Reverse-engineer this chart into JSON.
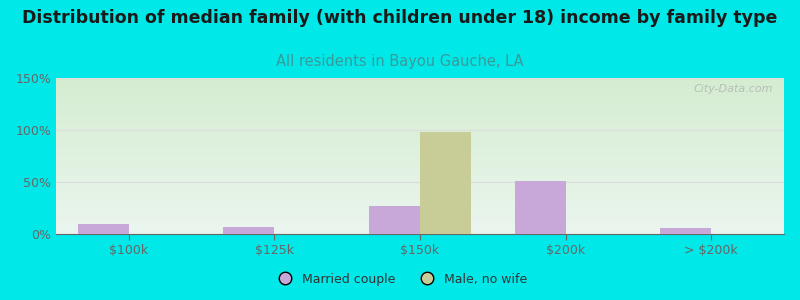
{
  "title": "Distribution of median family (with children under 18) income by family type",
  "subtitle": "All residents in Bayou Gauche, LA",
  "categories": [
    "$100k",
    "$125k",
    "$150k",
    "$200k",
    "> $200k"
  ],
  "married_couple": [
    10,
    7,
    27,
    51,
    6
  ],
  "male_no_wife": [
    0,
    0,
    98,
    0,
    0
  ],
  "bar_width": 0.35,
  "married_color": "#c8a8d8",
  "male_color": "#c8cc96",
  "ylim": [
    0,
    150
  ],
  "yticks": [
    0,
    50,
    100,
    150
  ],
  "ytick_labels": [
    "0%",
    "50%",
    "100%",
    "150%"
  ],
  "background_outer": "#00e8e8",
  "background_plot_top": "#eaf5ee",
  "background_plot_bottom": "#d4ecd0",
  "title_fontsize": 12.5,
  "subtitle_fontsize": 10.5,
  "subtitle_color": "#3a9a9a",
  "axis_color": "#666666",
  "grid_color": "#dddddd",
  "watermark": "City-Data.com",
  "legend_text_color": "#333333"
}
